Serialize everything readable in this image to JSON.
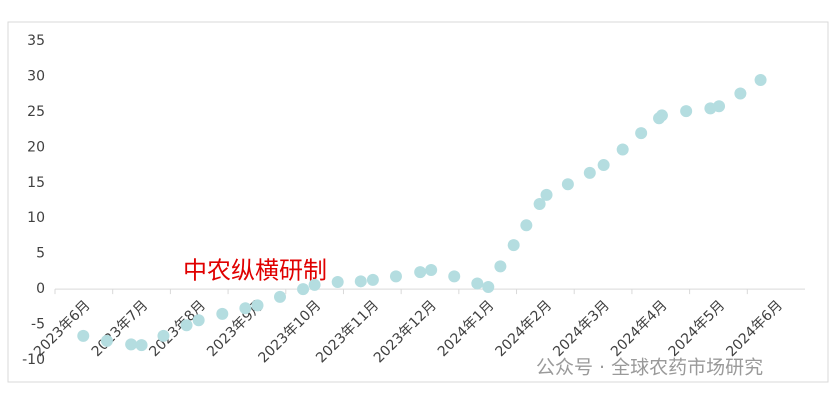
{
  "chart_data": {
    "type": "scatter",
    "annotations": [
      "中农纵横研制",
      "公众号 · 全球农药市场研究"
    ],
    "color": "#b4dde0",
    "x": [
      0.49,
      0.9,
      1.32,
      1.5,
      1.88,
      2.28,
      2.49,
      2.9,
      3.3,
      3.51,
      3.9,
      4.3,
      4.5,
      4.9,
      5.3,
      5.51,
      5.91,
      6.33,
      6.52,
      6.92,
      7.32,
      7.51,
      7.72,
      7.95,
      8.17,
      8.4,
      8.52,
      8.89,
      9.27,
      9.51,
      9.84,
      10.16,
      10.47,
      10.52,
      10.94,
      11.36,
      11.51,
      11.88,
      12.23
    ],
    "values": [
      -6.6,
      -7.3,
      -7.8,
      -7.9,
      -6.6,
      -5.1,
      -4.4,
      -3.5,
      -2.7,
      -2.3,
      -1.1,
      0,
      0.6,
      1.0,
      1.1,
      1.3,
      1.8,
      2.4,
      2.7,
      1.8,
      0.8,
      0.3,
      3.2,
      6.2,
      9.0,
      12.0,
      13.3,
      14.8,
      16.4,
      17.5,
      19.7,
      22.0,
      24.1,
      24.5,
      25.1,
      25.5,
      25.8,
      27.6,
      29.5
    ],
    "xlim": [
      0,
      13
    ],
    "xticks": [
      {
        "value": 0,
        "label": "2023年6月"
      },
      {
        "value": 1,
        "label": "2023年7月"
      },
      {
        "value": 2,
        "label": "2023年8月"
      },
      {
        "value": 3,
        "label": "2023年9月"
      },
      {
        "value": 4,
        "label": "2023年10月"
      },
      {
        "value": 5,
        "label": "2023年11月"
      },
      {
        "value": 6,
        "label": "2023年12月"
      },
      {
        "value": 7,
        "label": "2024年1月"
      },
      {
        "value": 8,
        "label": "2024年2月"
      },
      {
        "value": 9,
        "label": "2024年3月"
      },
      {
        "value": 10,
        "label": "2024年4月"
      },
      {
        "value": 11,
        "label": "2024年5月"
      },
      {
        "value": 12,
        "label": "2024年6月"
      }
    ],
    "ylim": [
      -10,
      35
    ],
    "yticks": [
      -10,
      -5,
      0,
      5,
      10,
      15,
      20,
      25,
      30,
      35
    ]
  }
}
